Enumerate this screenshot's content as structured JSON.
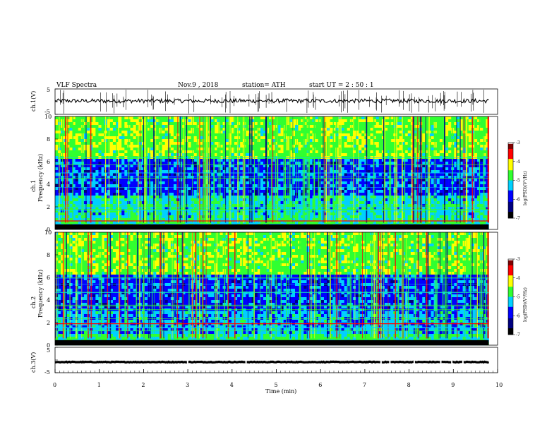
{
  "header": {
    "title": "VLF  Spectra",
    "date": "Nov.9  , 2018",
    "station": "station= ATH",
    "start": "start  UT  =    2  : 50 : 1"
  },
  "chart_data": [
    {
      "type": "line",
      "panel": "ch1-waveform",
      "ylabel": "ch.1(V)",
      "ylim": [
        -5,
        5
      ],
      "yticks": [
        "5",
        "-5"
      ],
      "x_range_min": [
        0,
        9.8
      ],
      "level_volts": 0.3
    },
    {
      "type": "heatmap",
      "panel": "ch1-spectrogram",
      "ylabel": "ch.1\nFrequency  (kHz)",
      "ylim": [
        0,
        10
      ],
      "yticks": [
        "0",
        "2",
        "4",
        "6",
        "8",
        "10"
      ],
      "x_range_min": [
        0,
        9.8
      ],
      "colorbar": {
        "label": "log(PSD)(V²/Hz)",
        "ticks": [
          "-3",
          "-4",
          "-5",
          "-6",
          "-7"
        ],
        "range": [
          -7,
          -3
        ]
      }
    },
    {
      "type": "heatmap",
      "panel": "ch2-spectrogram",
      "ylabel": "ch.2\nFrequency  (kHz)",
      "ylim": [
        0,
        10
      ],
      "yticks": [
        "0",
        "2",
        "4",
        "6",
        "8",
        "10"
      ],
      "x_range_min": [
        0,
        9.8
      ],
      "colorbar": {
        "label": "log(PSD)(V²/Hz)",
        "ticks": [
          "-3",
          "-4",
          "-5",
          "-6",
          "-7"
        ],
        "range": [
          -7,
          -3
        ]
      }
    },
    {
      "type": "line",
      "panel": "ch3-waveform",
      "ylabel": "ch.3(V)",
      "ylim": [
        -5,
        5
      ],
      "yticks": [
        "5",
        "-5"
      ],
      "x_range_min": [
        0,
        9.8
      ],
      "level_volts": -0.8
    }
  ],
  "xaxis": {
    "label": "Time  (min)",
    "ticks": [
      "0",
      "1",
      "2",
      "3",
      "4",
      "5",
      "6",
      "7",
      "8",
      "9",
      "10"
    ],
    "range": [
      0,
      10
    ]
  },
  "colors": {
    "deep": "#000080",
    "blue": "#0000ff",
    "cyan": "#00d0ff",
    "green": "#30ff30",
    "yellow": "#ffff00",
    "red": "#ff0000",
    "darkred": "#800000"
  }
}
